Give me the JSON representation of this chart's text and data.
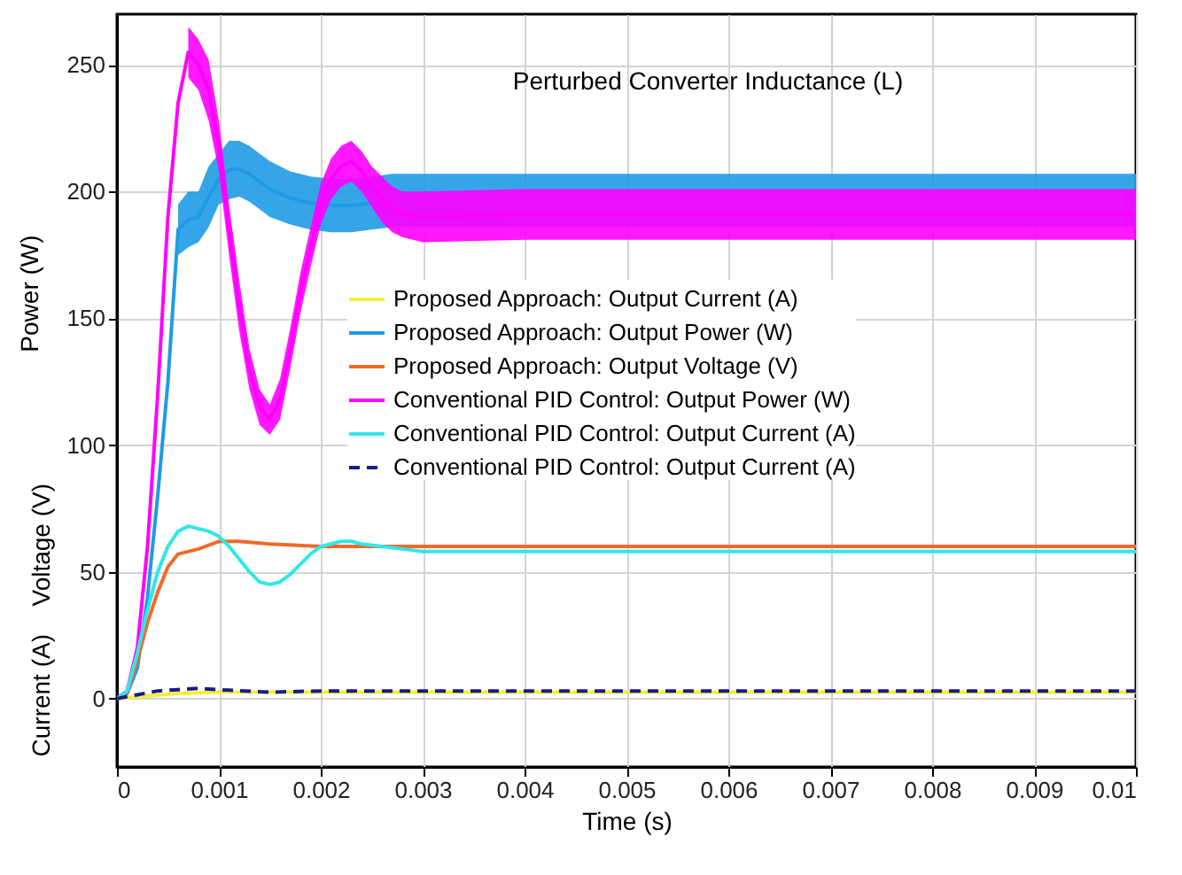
{
  "chart_data": {
    "type": "line",
    "title": "Perturbed Converter Inductance (L)",
    "xlabel": "Time (s)",
    "ylabel": "Power (W)",
    "annotations": [
      "Voltage (V)",
      "Current (A)"
    ],
    "xlim": [
      0,
      0.01
    ],
    "xticks": [
      0,
      0.001,
      0.002,
      0.003,
      0.004,
      0.005,
      0.006,
      0.007,
      0.008,
      0.009,
      0.01
    ],
    "ylim": [
      -27,
      270
    ],
    "yticks": [
      0,
      50,
      100,
      150,
      200,
      250
    ],
    "grid": true,
    "legend": "right",
    "line_style": "solid",
    "series": [
      {
        "name": "Proposed Approach: Output Current (A)",
        "color": "#f2ee3a",
        "x": [
          0,
          0.0003,
          0.0006,
          0.001,
          0.01
        ],
        "values": [
          0,
          1,
          2,
          2.5,
          2.5
        ]
      },
      {
        "name": "Proposed Approach: Output Power (W)",
        "color": "#1f9be6",
        "x": [
          0,
          0.0001,
          0.0002,
          0.0003,
          0.0004,
          0.0005,
          0.0006,
          0.0007,
          0.0008,
          0.0009,
          0.001,
          0.0011,
          0.0012,
          0.0013,
          0.0014,
          0.0015,
          0.0017,
          0.0019,
          0.0021,
          0.0023,
          0.0025,
          0.0027,
          0.003,
          0.004,
          0.005,
          0.006,
          0.007,
          0.008,
          0.009,
          0.01
        ],
        "values": [
          0,
          2,
          12,
          40,
          80,
          125,
          185,
          189,
          190,
          198,
          205,
          208.5,
          209,
          207,
          204,
          201,
          197.5,
          195.5,
          194.5,
          194.5,
          195.5,
          null,
          null,
          null,
          null,
          null,
          null,
          null,
          null,
          null
        ],
        "lower": [
          null,
          null,
          null,
          null,
          null,
          null,
          175,
          178,
          180,
          186,
          195,
          197,
          198,
          196,
          193,
          190,
          187,
          185,
          184,
          184,
          185,
          186,
          186,
          186,
          186,
          186,
          186,
          186,
          186,
          186
        ],
        "upper": [
          null,
          null,
          null,
          null,
          null,
          null,
          195,
          200,
          200,
          210,
          215,
          220,
          220,
          218,
          215,
          212,
          208,
          206,
          205,
          205,
          206,
          207,
          207,
          207,
          207,
          207,
          207,
          207,
          207,
          207
        ]
      },
      {
        "name": "Proposed Approach: Output Voltage (V)",
        "color": "#f06a2a",
        "x": [
          0,
          0.0001,
          0.0002,
          0.0003,
          0.0004,
          0.0005,
          0.0006,
          0.0008,
          0.001,
          0.0012,
          0.0015,
          0.002,
          0.003,
          0.005,
          0.01
        ],
        "values": [
          0,
          2,
          15,
          30,
          42,
          52,
          57,
          59,
          62,
          62,
          61,
          60,
          60,
          60,
          60
        ]
      },
      {
        "name": "Conventional PID Control: Output Power (W)",
        "color": "#ff00ff",
        "x": [
          0,
          0.0001,
          0.0002,
          0.0003,
          0.0004,
          0.0005,
          0.0006,
          0.0007,
          0.0008,
          0.0009,
          0.001,
          0.0011,
          0.0012,
          0.0013,
          0.0014,
          0.0015,
          0.0016,
          0.0017,
          0.0018,
          0.0019,
          0.002,
          0.0021,
          0.0022,
          0.0023,
          0.0024,
          0.0025,
          0.0026,
          0.0027,
          0.0028,
          0.003,
          0.004,
          0.005,
          0.006,
          0.007,
          0.008,
          0.009,
          0.01
        ],
        "values": [
          0,
          3,
          20,
          60,
          120,
          190,
          235,
          255,
          250,
          240,
          218,
          185,
          155,
          130,
          115,
          110,
          118,
          138,
          160,
          178,
          195,
          205,
          210,
          212,
          208,
          202,
          197,
          193,
          191,
          190,
          191,
          191,
          191,
          191,
          191,
          191,
          191
        ],
        "lower": [
          null,
          null,
          null,
          null,
          null,
          null,
          null,
          245,
          240,
          228,
          208,
          175,
          145,
          122,
          108,
          104,
          110,
          130,
          152,
          170,
          187,
          197,
          202,
          204,
          200,
          194,
          188,
          184,
          182,
          180,
          181,
          181,
          181,
          181,
          181,
          181,
          181
        ],
        "upper": [
          null,
          null,
          null,
          null,
          null,
          null,
          null,
          265,
          260,
          252,
          228,
          195,
          165,
          138,
          122,
          116,
          126,
          146,
          168,
          186,
          203,
          213,
          218,
          220,
          216,
          210,
          206,
          202,
          200,
          200,
          201,
          201,
          201,
          201,
          201,
          201,
          201
        ]
      },
      {
        "name": "Conventional PID Control: Output Current (A)",
        "color": "#33e6e6",
        "x": [
          0,
          0.0001,
          0.0002,
          0.0003,
          0.0004,
          0.0005,
          0.0006,
          0.0007,
          0.0008,
          0.0009,
          0.001,
          0.0011,
          0.0012,
          0.0013,
          0.0014,
          0.0015,
          0.0016,
          0.0017,
          0.0018,
          0.0019,
          0.002,
          0.0021,
          0.0022,
          0.0023,
          0.0024,
          0.0026,
          0.0028,
          0.003,
          0.004,
          0.005,
          0.01
        ],
        "values": [
          0,
          3,
          18,
          35,
          50,
          60,
          66,
          68,
          67,
          66,
          64,
          60,
          55,
          50,
          46,
          45,
          46,
          49,
          53,
          57,
          60,
          61,
          62,
          62,
          61,
          60,
          59,
          58,
          58,
          58,
          58
        ]
      },
      {
        "name": "Conventional PID Control: Output Current (A)",
        "color": "#1a1a8c",
        "line_style": "dashed",
        "x": [
          0,
          0.0002,
          0.0004,
          0.0006,
          0.0008,
          0.001,
          0.0015,
          0.002,
          0.003,
          0.01
        ],
        "values": [
          0,
          1.5,
          3,
          3.5,
          4,
          3.5,
          2.5,
          3,
          3,
          3
        ]
      }
    ]
  }
}
